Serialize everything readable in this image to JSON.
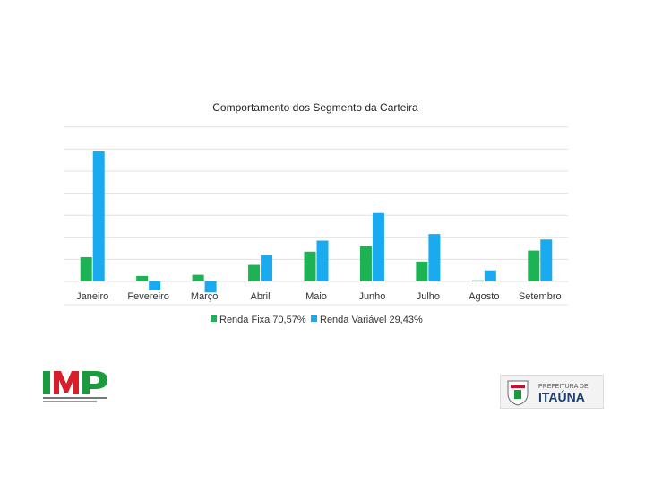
{
  "chart_data": {
    "type": "bar",
    "title": "Comportamento dos Segmento da Carteira",
    "xlabel": "",
    "ylabel": "",
    "categories": [
      "Janeiro",
      "Fevereiro",
      "Março",
      "Abril",
      "Maio",
      "Junho",
      "Julho",
      "Agosto",
      "Setembro"
    ],
    "series": [
      {
        "name": "Renda Fixa 70,57%",
        "color": "#1db254",
        "values": [
          1.1,
          0.25,
          0.3,
          0.75,
          1.35,
          1.6,
          0.9,
          0.05,
          1.4
        ]
      },
      {
        "name": "Renda Variável 29,43%",
        "color": "#19aaf0",
        "values": [
          5.9,
          -0.4,
          -0.5,
          1.2,
          1.85,
          3.1,
          2.15,
          0.5,
          1.9
        ]
      }
    ],
    "ylim": [
      -0.5,
      7
    ],
    "grid": true,
    "legend": "bottom"
  },
  "logos": {
    "imp": {
      "text": "IMP",
      "colors": [
        "#1a9c3e",
        "#d81e2a",
        "#1a9c3e"
      ]
    },
    "itauna": {
      "top_text": "PREFEITURA DE",
      "bottom_text": "ITAÚNA",
      "text_color": "#1c3f74",
      "accent": "#c8102e"
    }
  }
}
